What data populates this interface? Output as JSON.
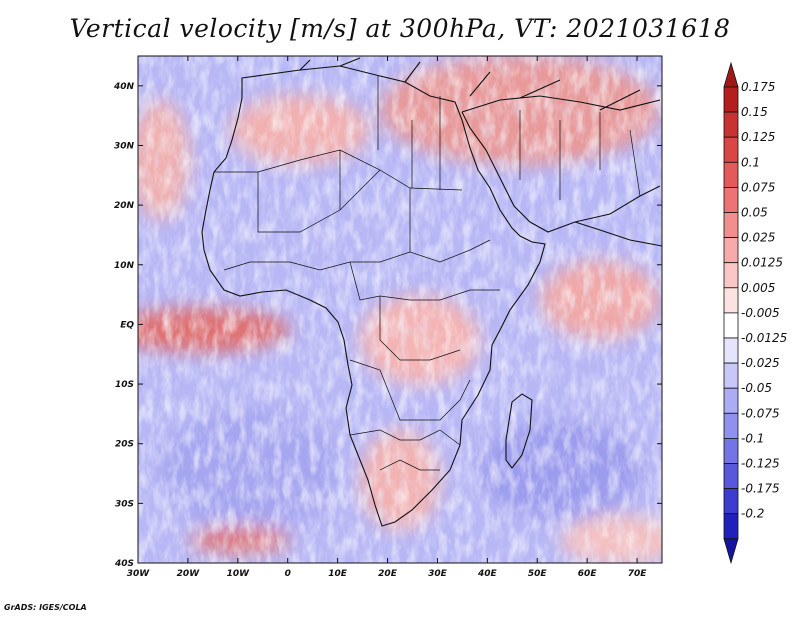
{
  "title": "Vertical velocity [m/s] at 300hPa, VT: 2021031618",
  "footer": "GrADS: IGES/COLA",
  "map": {
    "projection": "latlon",
    "lon_range": [
      -30,
      75
    ],
    "lat_range": [
      -40,
      45
    ],
    "lat_ticks": [
      {
        "value": 40,
        "label": "40N"
      },
      {
        "value": 30,
        "label": "30N"
      },
      {
        "value": 20,
        "label": "20N"
      },
      {
        "value": 10,
        "label": "10N"
      },
      {
        "value": 0,
        "label": "EQ"
      },
      {
        "value": -10,
        "label": "10S"
      },
      {
        "value": -20,
        "label": "20S"
      },
      {
        "value": -30,
        "label": "30S"
      },
      {
        "value": -40,
        "label": "40S"
      }
    ],
    "lon_ticks": [
      {
        "value": -30,
        "label": "30W"
      },
      {
        "value": -20,
        "label": "20W"
      },
      {
        "value": -10,
        "label": "10W"
      },
      {
        "value": 0,
        "label": "0"
      },
      {
        "value": 10,
        "label": "10E"
      },
      {
        "value": 20,
        "label": "20E"
      },
      {
        "value": 30,
        "label": "30E"
      },
      {
        "value": 40,
        "label": "40E"
      },
      {
        "value": 50,
        "label": "50E"
      },
      {
        "value": 60,
        "label": "60E"
      },
      {
        "value": 70,
        "label": "70E"
      }
    ]
  },
  "colorbar": {
    "levels": [
      {
        "label": "0.175",
        "color": "#b41e1e"
      },
      {
        "label": "0.15",
        "color": "#c83232"
      },
      {
        "label": "0.125",
        "color": "#d84646"
      },
      {
        "label": "0.1",
        "color": "#e45a5a"
      },
      {
        "label": "0.075",
        "color": "#ec7474"
      },
      {
        "label": "0.05",
        "color": "#f28e8e"
      },
      {
        "label": "0.025",
        "color": "#f6aaaa"
      },
      {
        "label": "0.0125",
        "color": "#fac6c6"
      },
      {
        "label": "0.005",
        "color": "#fde2e2"
      },
      {
        "label": "-0.005",
        "color": "#ffffff"
      },
      {
        "label": "-0.0125",
        "color": "#e4e4fc"
      },
      {
        "label": "-0.025",
        "color": "#c8c8f8"
      },
      {
        "label": "-0.05",
        "color": "#acacf4"
      },
      {
        "label": "-0.075",
        "color": "#9090ee"
      },
      {
        "label": "-0.1",
        "color": "#7474e6"
      },
      {
        "label": "-0.125",
        "color": "#5858dc"
      },
      {
        "label": "-0.175",
        "color": "#3c3cd0"
      },
      {
        "label": "-0.2",
        "color": "#2020bc"
      }
    ],
    "over_color": "#a01818",
    "under_color": "#14149e"
  }
}
